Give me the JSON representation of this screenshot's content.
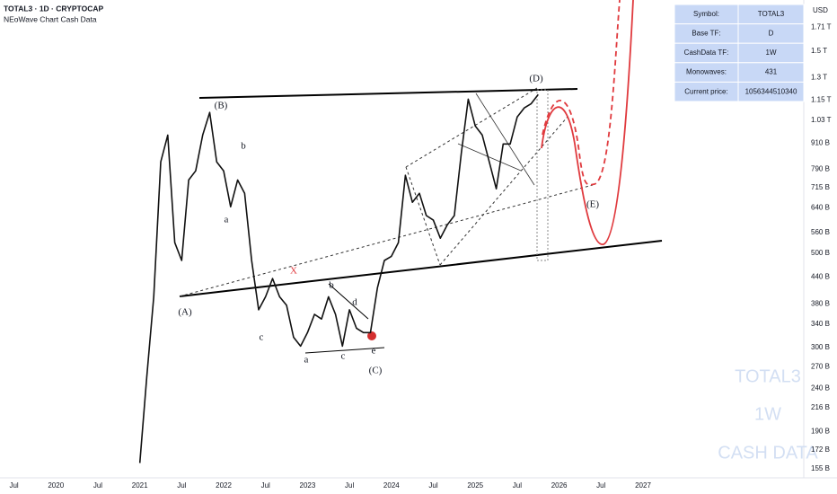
{
  "chart_data": {
    "type": "line",
    "title": "TOTAL3 · 1D · CRYPTOCAP",
    "subtitle": "NEoWave Chart Cash Data",
    "unit": "USD",
    "color": "#111111",
    "log_scale": true,
    "grid": false,
    "x": [
      "2021-01",
      "2021-02",
      "2021-03",
      "2021-04",
      "2021-05",
      "2021-06",
      "2021-07",
      "2021-08",
      "2021-09",
      "2021-10",
      "2021-11",
      "2021-12",
      "2022-01",
      "2022-02",
      "2022-03",
      "2022-04",
      "2022-05",
      "2022-06",
      "2022-07",
      "2022-08",
      "2022-09",
      "2022-10",
      "2022-11",
      "2022-12",
      "2023-01",
      "2023-02",
      "2023-03",
      "2023-04",
      "2023-05",
      "2023-06",
      "2023-07",
      "2023-08",
      "2023-09",
      "2023-10",
      "2023-11",
      "2023-12",
      "2024-01",
      "2024-02",
      "2024-03",
      "2024-04",
      "2024-05",
      "2024-06",
      "2024-07",
      "2024-08",
      "2024-09",
      "2024-10",
      "2024-11",
      "2024-12",
      "2025-01",
      "2025-02",
      "2025-03",
      "2025-04",
      "2025-05",
      "2025-06",
      "2025-07",
      "2025-08",
      "2025-09",
      "2025-10"
    ],
    "values": [
      160000000000,
      255000000000,
      395000000000,
      822000000000,
      951000000000,
      530000000000,
      481000000000,
      745000000000,
      783000000000,
      951000000000,
      1075000000000,
      822000000000,
      783000000000,
      644000000000,
      745000000000,
      693000000000,
      481000000000,
      368000000000,
      395000000000,
      436000000000,
      395000000000,
      377000000000,
      317000000000,
      302000000000,
      325000000000,
      359000000000,
      350000000000,
      395000000000,
      359000000000,
      302000000000,
      368000000000,
      333000000000,
      325000000000,
      325000000000,
      415000000000,
      481000000000,
      492000000000,
      530000000000,
      764000000000,
      660000000000,
      693000000000,
      614000000000,
      599000000000,
      543000000000,
      584000000000,
      614000000000,
      863000000000,
      1156000000000,
      999000000000,
      951000000000,
      822000000000,
      710000000000,
      906000000000,
      906000000000,
      1049000000000,
      1102000000000,
      1128000000000,
      1185000000000
    ],
    "xlim": [
      "2019-05",
      "2028-12"
    ],
    "xticks": [
      {
        "value": "2019-07",
        "label": "Jul"
      },
      {
        "value": "2020-01",
        "label": "2020"
      },
      {
        "value": "2020-07",
        "label": "Jul"
      },
      {
        "value": "2021-01",
        "label": "2021"
      },
      {
        "value": "2021-07",
        "label": "Jul"
      },
      {
        "value": "2022-01",
        "label": "2022"
      },
      {
        "value": "2022-07",
        "label": "Jul"
      },
      {
        "value": "2023-01",
        "label": "2023"
      },
      {
        "value": "2023-07",
        "label": "Jul"
      },
      {
        "value": "2024-01",
        "label": "2024"
      },
      {
        "value": "2024-07",
        "label": "Jul"
      },
      {
        "value": "2025-01",
        "label": "2025"
      },
      {
        "value": "2025-07",
        "label": "Jul"
      },
      {
        "value": "2026-01",
        "label": "2026"
      },
      {
        "value": "2026-07",
        "label": "Jul"
      },
      {
        "value": "2027-01",
        "label": "2027"
      }
    ],
    "ylim": [
      142000000000,
      1981000000000
    ],
    "yticks": [
      {
        "value": 155000000000,
        "label": "155 B"
      },
      {
        "value": 172000000000,
        "label": "172 B"
      },
      {
        "value": 190000000000,
        "label": "190 B"
      },
      {
        "value": 216000000000,
        "label": "216 B"
      },
      {
        "value": 240000000000,
        "label": "240 B"
      },
      {
        "value": 270000000000,
        "label": "270 B"
      },
      {
        "value": 300000000000,
        "label": "300 B"
      },
      {
        "value": 340000000000,
        "label": "340 B"
      },
      {
        "value": 380000000000,
        "label": "380 B"
      },
      {
        "value": 440000000000,
        "label": "440 B"
      },
      {
        "value": 500000000000,
        "label": "500 B"
      },
      {
        "value": 560000000000,
        "label": "560 B"
      },
      {
        "value": 640000000000,
        "label": "640 B"
      },
      {
        "value": 715000000000,
        "label": "715 B"
      },
      {
        "value": 790000000000,
        "label": "790 B"
      },
      {
        "value": 910000000000,
        "label": "910 B"
      },
      {
        "value": 1030000000000,
        "label": "1.03 T"
      },
      {
        "value": 1150000000000,
        "label": "1.15 T"
      },
      {
        "value": 1300000000000,
        "label": "1.3 T"
      },
      {
        "value": 1500000000000,
        "label": "1.5 T"
      },
      {
        "value": 1710000000000,
        "label": "1.71 T"
      }
    ],
    "annotations": [
      "(B)",
      "b",
      "a",
      "(A)",
      "c",
      "a",
      "c",
      "b",
      "d",
      "e",
      "(C)",
      "(D)",
      "(E)",
      "X"
    ]
  },
  "info_table": {
    "rows": [
      [
        "Symbol:",
        "TOTAL3"
      ],
      [
        "Base TF:",
        "D"
      ],
      [
        "CashData TF:",
        "1W"
      ],
      [
        "Monowaves:",
        431
      ],
      [
        "Current price:",
        1056344510340
      ]
    ]
  },
  "watermark": [
    "TOTAL3",
    "1W",
    "CASH DATA"
  ]
}
